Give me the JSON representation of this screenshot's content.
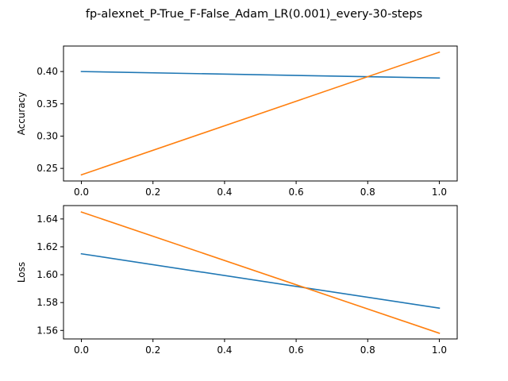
{
  "suptitle": "fp-alexnet_P-True_F-False_Adam_LR(0.001)_every-30-steps",
  "chart_data": [
    {
      "type": "line",
      "title": "",
      "xlabel": "",
      "ylabel": "Accuracy",
      "xlim": [
        -0.05,
        1.05
      ],
      "ylim": [
        0.2305,
        0.4395
      ],
      "xticks": [
        0.0,
        0.2,
        0.4,
        0.6,
        0.8,
        1.0
      ],
      "xtick_labels": [
        "0.0",
        "0.2",
        "0.4",
        "0.6",
        "0.8",
        "1.0"
      ],
      "yticks": [
        0.25,
        0.3,
        0.35,
        0.4
      ],
      "ytick_labels": [
        "0.25",
        "0.30",
        "0.35",
        "0.40"
      ],
      "grid": false,
      "series": [
        {
          "color": "#1f77b4",
          "x": [
            0,
            1
          ],
          "y": [
            0.4,
            0.39
          ]
        },
        {
          "color": "#ff7f0e",
          "x": [
            0,
            1
          ],
          "y": [
            0.24,
            0.43
          ]
        }
      ]
    },
    {
      "type": "line",
      "title": "",
      "xlabel": "",
      "ylabel": "Loss",
      "xlim": [
        -0.05,
        1.05
      ],
      "ylim": [
        1.5539,
        1.6496
      ],
      "xticks": [
        0.0,
        0.2,
        0.4,
        0.6,
        0.8,
        1.0
      ],
      "xtick_labels": [
        "0.0",
        "0.2",
        "0.4",
        "0.6",
        "0.8",
        "1.0"
      ],
      "yticks": [
        1.56,
        1.58,
        1.6,
        1.62,
        1.64
      ],
      "ytick_labels": [
        "1.56",
        "1.58",
        "1.60",
        "1.62",
        "1.64"
      ],
      "grid": false,
      "series": [
        {
          "color": "#1f77b4",
          "x": [
            0,
            1
          ],
          "y": [
            1.615,
            1.576
          ]
        },
        {
          "color": "#ff7f0e",
          "x": [
            0,
            1
          ],
          "y": [
            1.645,
            1.558
          ]
        }
      ]
    }
  ]
}
